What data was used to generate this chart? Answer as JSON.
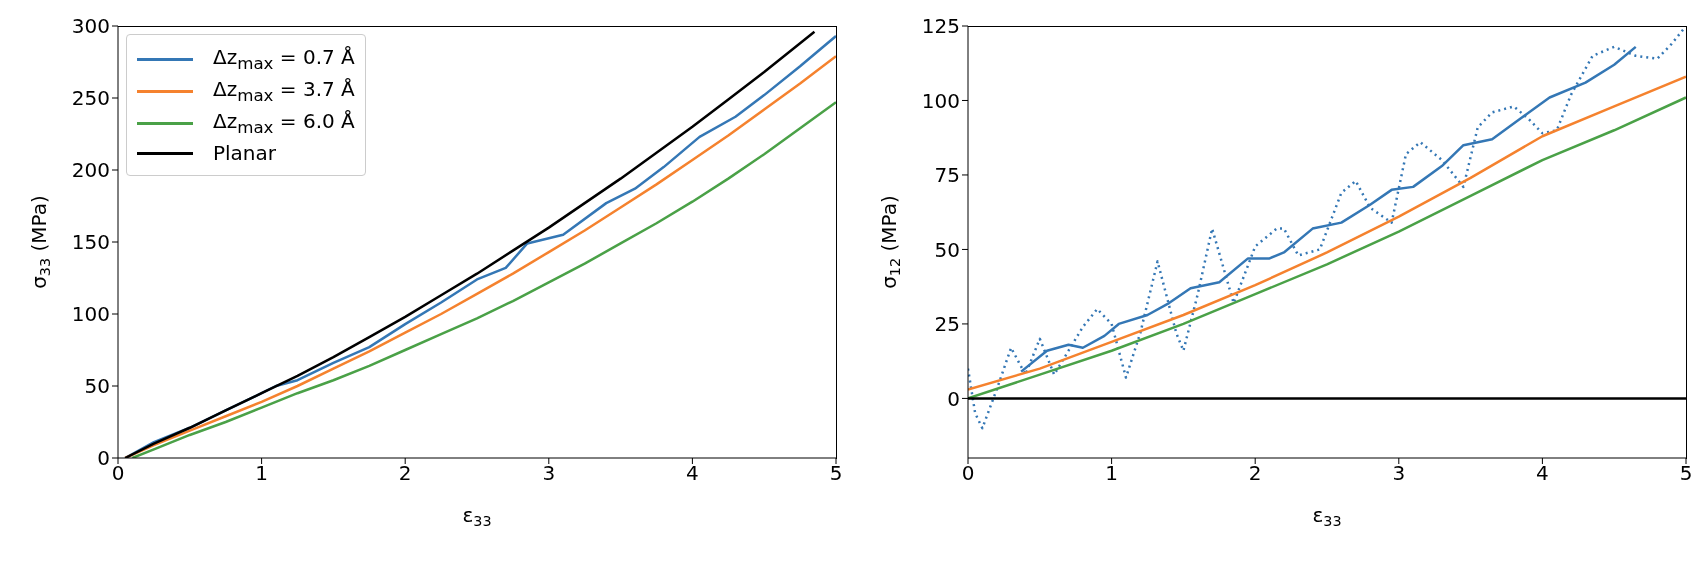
{
  "chart_data": [
    {
      "type": "line",
      "xlabel": "ε$_{33}$",
      "ylabel": "σ$_{33}$ (MPa)",
      "xlim": [
        0,
        5
      ],
      "xticks": [
        0,
        1,
        2,
        3,
        4,
        5
      ],
      "ylim": [
        0,
        300
      ],
      "yticks": [
        0,
        50,
        100,
        150,
        200,
        250,
        300
      ],
      "legend": "top left",
      "series": [
        {
          "name": "Δz$_{max}$ = 0.7 Å",
          "color": "#3477b5",
          "x": [
            0.05,
            0.25,
            0.5,
            0.75,
            1,
            1.1,
            1.25,
            1.5,
            1.75,
            2,
            2.25,
            2.5,
            2.7,
            2.85,
            3.1,
            3.4,
            3.6,
            3.8,
            4.05,
            4.3,
            4.5,
            4.75,
            5
          ],
          "values": [
            0,
            11,
            21,
            33,
            45,
            50,
            54,
            66,
            77,
            93,
            108,
            124,
            132,
            149,
            155,
            177,
            187,
            202,
            223,
            237,
            252,
            272,
            293
          ]
        },
        {
          "name": "Δz$_{max}$ = 3.7 Å",
          "color": "#f5822e",
          "x": [
            0.05,
            0.25,
            0.5,
            0.75,
            1,
            1.25,
            1.5,
            1.75,
            2,
            2.25,
            2.5,
            2.75,
            3,
            3.25,
            3.5,
            3.75,
            4,
            4.25,
            4.5,
            4.75,
            5
          ],
          "values": [
            0,
            9,
            19,
            29,
            39,
            50,
            62,
            74,
            87,
            100,
            114,
            128,
            143,
            158,
            174,
            190,
            207,
            224,
            242,
            260,
            279
          ]
        },
        {
          "name": "Δz$_{max}$ = 6.0 Å",
          "color": "#4aa147",
          "x": [
            0.1,
            0.25,
            0.5,
            0.75,
            1,
            1.25,
            1.5,
            1.75,
            2,
            2.25,
            2.5,
            2.75,
            3,
            3.25,
            3.5,
            3.75,
            4,
            4.25,
            4.5,
            4.75,
            5
          ],
          "values": [
            0,
            6,
            16,
            25,
            35,
            45,
            54,
            64,
            75,
            86,
            97,
            109,
            122,
            135,
            149,
            163,
            178,
            194,
            211,
            229,
            247
          ]
        },
        {
          "name": "Planar",
          "color": "#000000",
          "x": [
            0.05,
            0.25,
            0.5,
            0.75,
            1,
            1.25,
            1.5,
            1.75,
            2,
            2.25,
            2.5,
            2.75,
            3,
            3.25,
            3.5,
            3.75,
            4,
            4.25,
            4.5,
            4.75,
            4.85
          ],
          "values": [
            0,
            10,
            21,
            33,
            45,
            57,
            70,
            84,
            98,
            113,
            128,
            144,
            160,
            177,
            194,
            212,
            230,
            249,
            268,
            288,
            296
          ]
        }
      ]
    },
    {
      "type": "line",
      "xlabel": "ε$_{33}$",
      "ylabel": "σ$_{12}$ (MPa)",
      "xlim": [
        0,
        5
      ],
      "xticks": [
        0,
        1,
        2,
        3,
        4,
        5
      ],
      "ylim": [
        -20,
        125
      ],
      "yticks": [
        0,
        25,
        50,
        75,
        100,
        125
      ],
      "series": [
        {
          "color": "#3477b5",
          "line_style": "dotted",
          "x": [
            0,
            0.05,
            0.1,
            0.2,
            0.3,
            0.4,
            0.5,
            0.6,
            0.8,
            0.9,
            1.0,
            1.1,
            1.2,
            1.32,
            1.45,
            1.5,
            1.6,
            1.7,
            1.85,
            2.0,
            2.15,
            2.2,
            2.3,
            2.45,
            2.6,
            2.7,
            2.8,
            2.95,
            3.05,
            3.15,
            3.3,
            3.45,
            3.55,
            3.65,
            3.8,
            3.9,
            4.0,
            4.1,
            4.2,
            4.35,
            4.5,
            4.65,
            4.8,
            4.9,
            5.0
          ],
          "values": [
            10,
            -5,
            -10,
            3,
            17,
            8,
            20,
            8,
            24,
            30,
            25,
            7,
            22,
            46,
            22,
            16,
            35,
            57,
            32,
            51,
            57,
            57,
            48,
            50,
            69,
            73,
            64,
            59,
            82,
            86,
            80,
            71,
            91,
            96,
            98,
            94,
            89,
            90,
            102,
            115,
            118,
            115,
            114,
            119,
            125
          ]
        },
        {
          "color": "#3477b5",
          "x": [
            0.37,
            0.55,
            0.7,
            0.8,
            0.95,
            1.05,
            1.25,
            1.4,
            1.55,
            1.75,
            1.95,
            2.1,
            2.2,
            2.4,
            2.6,
            2.8,
            2.95,
            3.1,
            3.3,
            3.45,
            3.65,
            3.85,
            4.05,
            4.3,
            4.5,
            4.65
          ],
          "values": [
            9,
            16,
            18,
            17,
            21,
            25,
            28,
            32,
            37,
            39,
            47,
            47,
            49,
            57,
            59,
            65,
            70,
            71,
            78,
            85,
            87,
            94,
            101,
            106,
            112,
            118
          ]
        },
        {
          "color": "#f5822e",
          "x": [
            0,
            0.5,
            1,
            1.5,
            2,
            2.5,
            3,
            3.5,
            4,
            4.5,
            5
          ],
          "values": [
            3,
            10,
            19,
            28,
            38,
            49,
            61,
            74,
            88,
            98,
            108
          ]
        },
        {
          "color": "#4aa147",
          "x": [
            0,
            0.5,
            1,
            1.5,
            2,
            2.5,
            3,
            3.5,
            4,
            4.5,
            5
          ],
          "values": [
            0,
            8,
            16,
            25,
            35,
            45,
            56,
            68,
            80,
            90,
            101
          ]
        },
        {
          "color": "#000000",
          "x": [
            0,
            2.5,
            5
          ],
          "values": [
            0,
            0,
            0
          ]
        }
      ]
    }
  ]
}
